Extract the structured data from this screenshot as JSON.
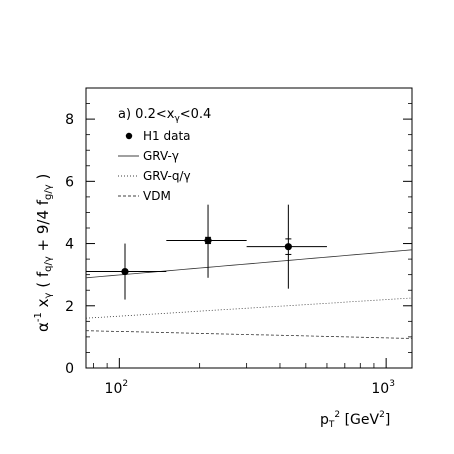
{
  "chart_data": {
    "type": "scatter",
    "panel_label": "a) 0.2<x",
    "panel_label_sub": "γ",
    "panel_label_tail": "<0.4",
    "xlabel": {
      "main": "p",
      "sub": "T",
      "sup": "2",
      "units": " [GeV",
      "units_sup": "2",
      "units_close": "]"
    },
    "ylabel": {
      "p1": "α",
      "p1_sup": "-1",
      "p2": " x",
      "p2_sub": "γ",
      "p3": " ( f",
      "p3_sub": "q/γ",
      "p4": " + 9/4 f",
      "p4_sub": "g/γ",
      "p5": " )"
    },
    "x_scale": "log",
    "xlim": [
      75,
      1250
    ],
    "ylim": [
      0,
      9
    ],
    "y_ticks": [
      0,
      2,
      4,
      6,
      8
    ],
    "y_tick_labels": [
      "0",
      "2",
      "4",
      "6",
      "8"
    ],
    "x_tick_labels": [
      {
        "base": "10",
        "exp": "2",
        "value": 100
      },
      {
        "base": "10",
        "exp": "3",
        "value": 1000
      }
    ],
    "grid": false,
    "legend_position": "top-left",
    "legend": [
      {
        "label": "H1 data",
        "style": "marker"
      },
      {
        "label": "GRV-γ",
        "style": "solid"
      },
      {
        "label": "GRV-q/γ",
        "style": "dotted"
      },
      {
        "label": "VDM",
        "style": "dashed"
      }
    ],
    "data_points": [
      {
        "x": 105,
        "y": 3.1,
        "x_low": 75,
        "x_high": 150,
        "y_err_low": 0.9,
        "y_err_high": 0.9
      },
      {
        "x": 215,
        "y": 4.1,
        "x_low": 150,
        "x_high": 300,
        "y_err_low": 1.2,
        "y_err_high": 1.15,
        "y_stat": 0.1
      },
      {
        "x": 430,
        "y": 3.9,
        "x_low": 300,
        "x_high": 600,
        "y_err_low": 1.35,
        "y_err_high": 1.35,
        "y_stat": 0.25
      }
    ],
    "curves": [
      {
        "name": "GRV-γ",
        "style": "solid",
        "x": [
          75,
          1250
        ],
        "y": [
          2.9,
          3.8
        ]
      },
      {
        "name": "GRV-q/γ",
        "style": "dotted",
        "x": [
          75,
          1250
        ],
        "y": [
          1.6,
          2.25
        ]
      },
      {
        "name": "VDM",
        "style": "dashed",
        "x": [
          75,
          1250
        ],
        "y": [
          1.2,
          0.95
        ]
      }
    ]
  }
}
